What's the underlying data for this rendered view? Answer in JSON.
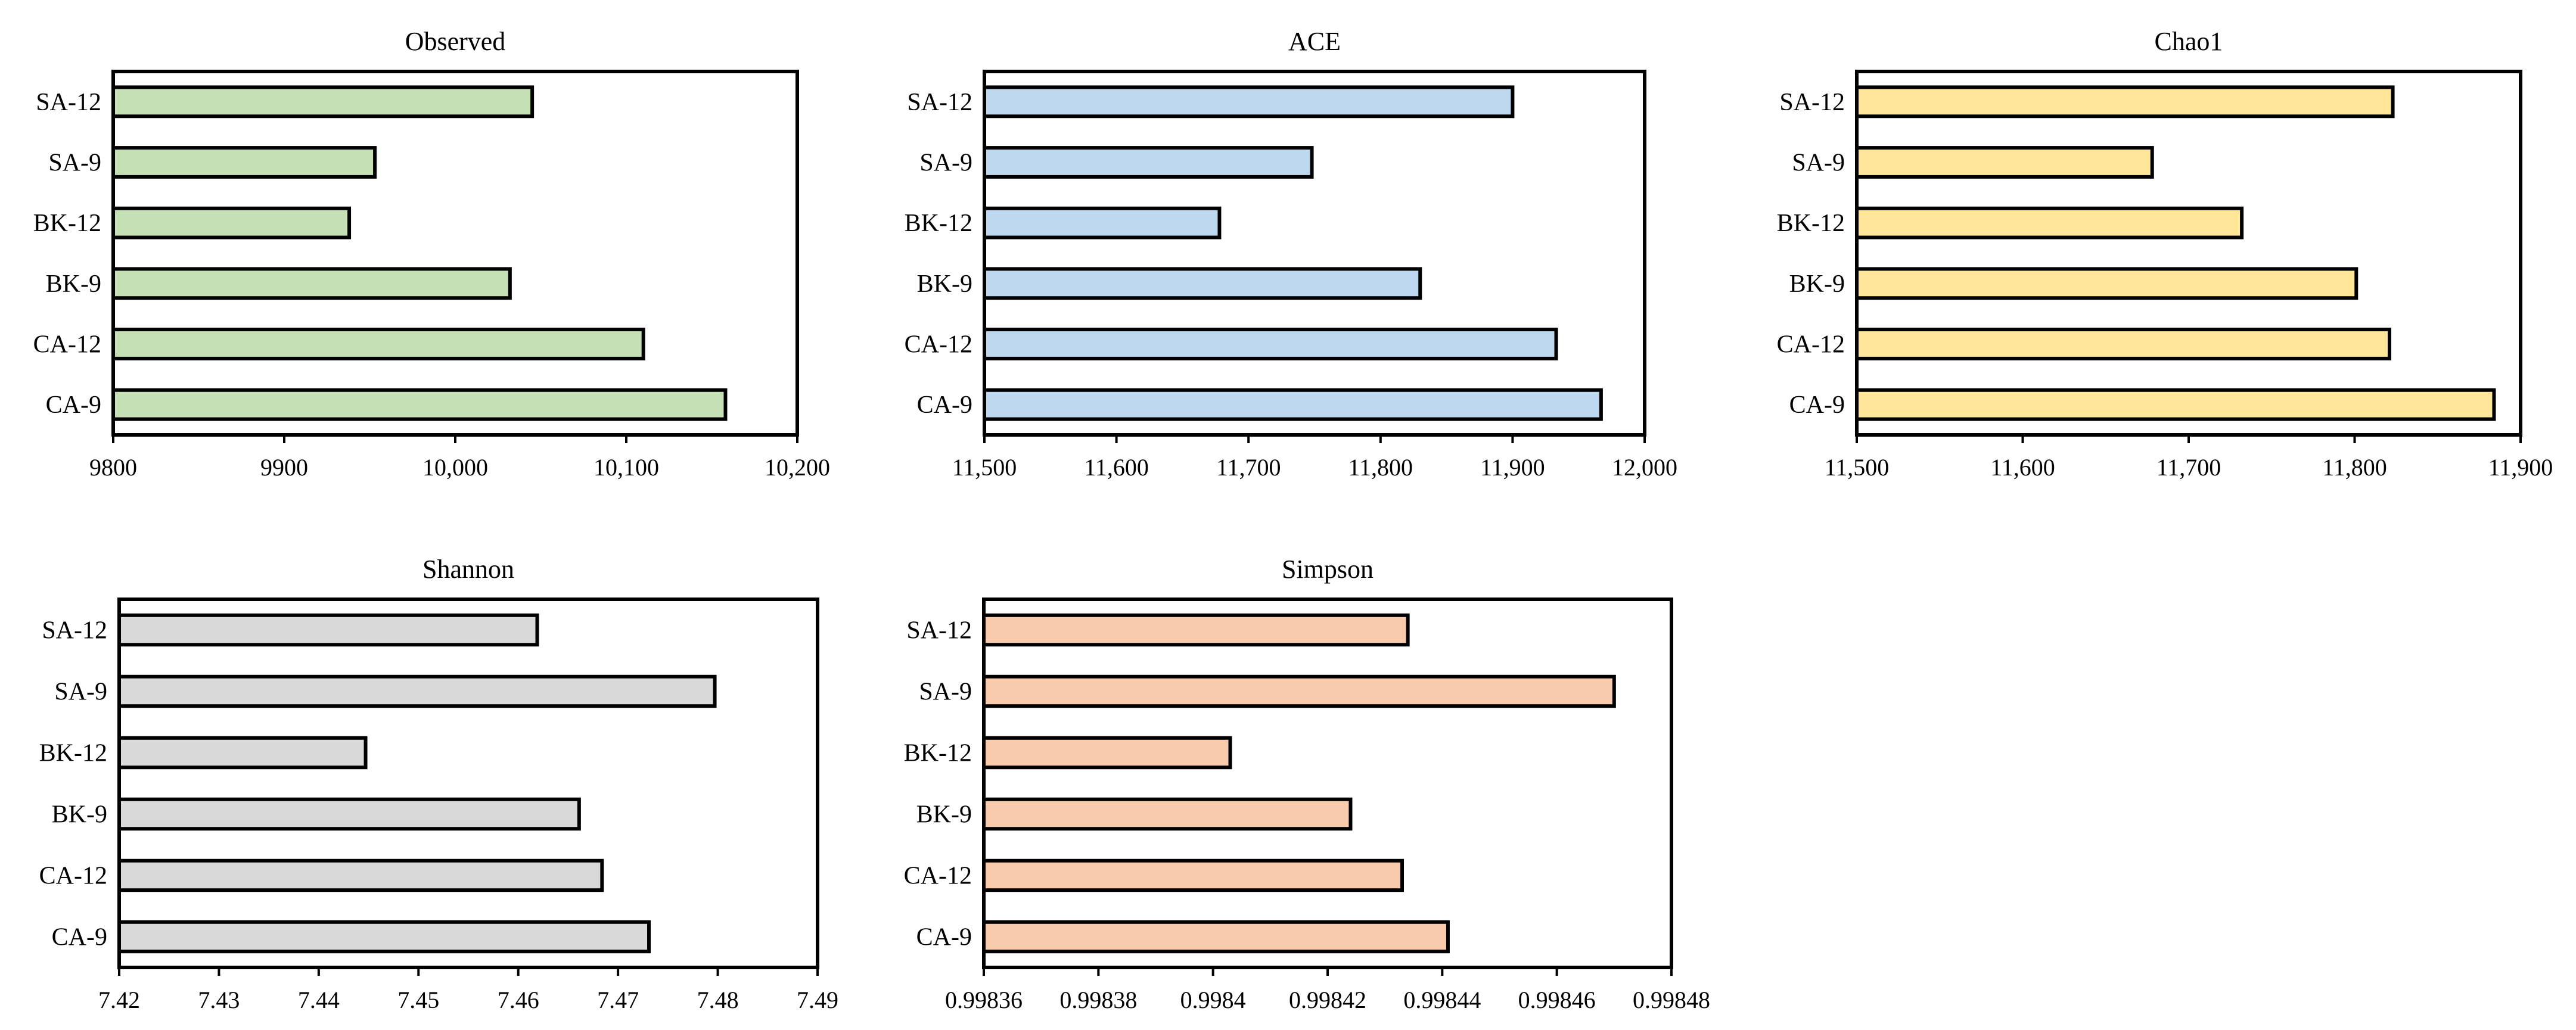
{
  "chart_data": [
    {
      "type": "bar",
      "orientation": "horizontal",
      "title": "Observed",
      "categories": [
        "SA-12",
        "SA-9",
        "BK-12",
        "BK-9",
        "CA-12",
        "CA-9"
      ],
      "values": [
        10045,
        9953,
        9938,
        10032,
        10110,
        10158
      ],
      "xlim": [
        9800,
        10200
      ],
      "ticks": [
        9800,
        9900,
        10000,
        10100,
        10200
      ],
      "tick_labels": [
        "9800",
        "9900",
        "10,000",
        "10,100",
        "10,200"
      ],
      "color": "#c5e0b4"
    },
    {
      "type": "bar",
      "orientation": "horizontal",
      "title": "ACE",
      "categories": [
        "SA-12",
        "SA-9",
        "BK-12",
        "BK-9",
        "CA-12",
        "CA-9"
      ],
      "values": [
        11900,
        11748,
        11678,
        11830,
        11933,
        11967
      ],
      "xlim": [
        11500,
        12000
      ],
      "ticks": [
        11500,
        11600,
        11700,
        11800,
        11900,
        12000
      ],
      "tick_labels": [
        "11,500",
        "11,600",
        "11,700",
        "11,800",
        "11,900",
        "12,000"
      ],
      "color": "#bdd7ee"
    },
    {
      "type": "bar",
      "orientation": "horizontal",
      "title": "Chao1",
      "categories": [
        "SA-12",
        "SA-9",
        "BK-12",
        "BK-9",
        "CA-12",
        "CA-9"
      ],
      "values": [
        11823,
        11678,
        11732,
        11801,
        11821,
        11884
      ],
      "xlim": [
        11500,
        11900
      ],
      "ticks": [
        11500,
        11600,
        11700,
        11800,
        11900
      ],
      "tick_labels": [
        "11,500",
        "11,600",
        "11,700",
        "11,800",
        "11,900"
      ],
      "color": "#ffe699"
    },
    {
      "type": "bar",
      "orientation": "horizontal",
      "title": "Shannon",
      "categories": [
        "SA-12",
        "SA-9",
        "BK-12",
        "BK-9",
        "CA-12",
        "CA-9"
      ],
      "values": [
        7.4619,
        7.4797,
        7.4447,
        7.4661,
        7.4684,
        7.4731
      ],
      "xlim": [
        7.42,
        7.49
      ],
      "ticks": [
        7.42,
        7.43,
        7.44,
        7.45,
        7.46,
        7.47,
        7.48,
        7.49
      ],
      "tick_labels": [
        "7.42",
        "7.43",
        "7.44",
        "7.45",
        "7.46",
        "7.47",
        "7.48",
        "7.49"
      ],
      "color": "#d9d9d9"
    },
    {
      "type": "bar",
      "orientation": "horizontal",
      "title": "Simpson",
      "categories": [
        "SA-12",
        "SA-9",
        "BK-12",
        "BK-9",
        "CA-12",
        "CA-9"
      ],
      "values": [
        0.998434,
        0.99847,
        0.998403,
        0.998424,
        0.998433,
        0.998441
      ],
      "xlim": [
        0.99836,
        0.99848
      ],
      "ticks": [
        0.99836,
        0.99838,
        0.9984,
        0.99842,
        0.99844,
        0.99846,
        0.99848
      ],
      "tick_labels": [
        "0.99836",
        "0.99838",
        "0.9984",
        "0.99842",
        "0.99844",
        "0.99846",
        "0.99848"
      ],
      "color": "#f8cbad"
    }
  ]
}
